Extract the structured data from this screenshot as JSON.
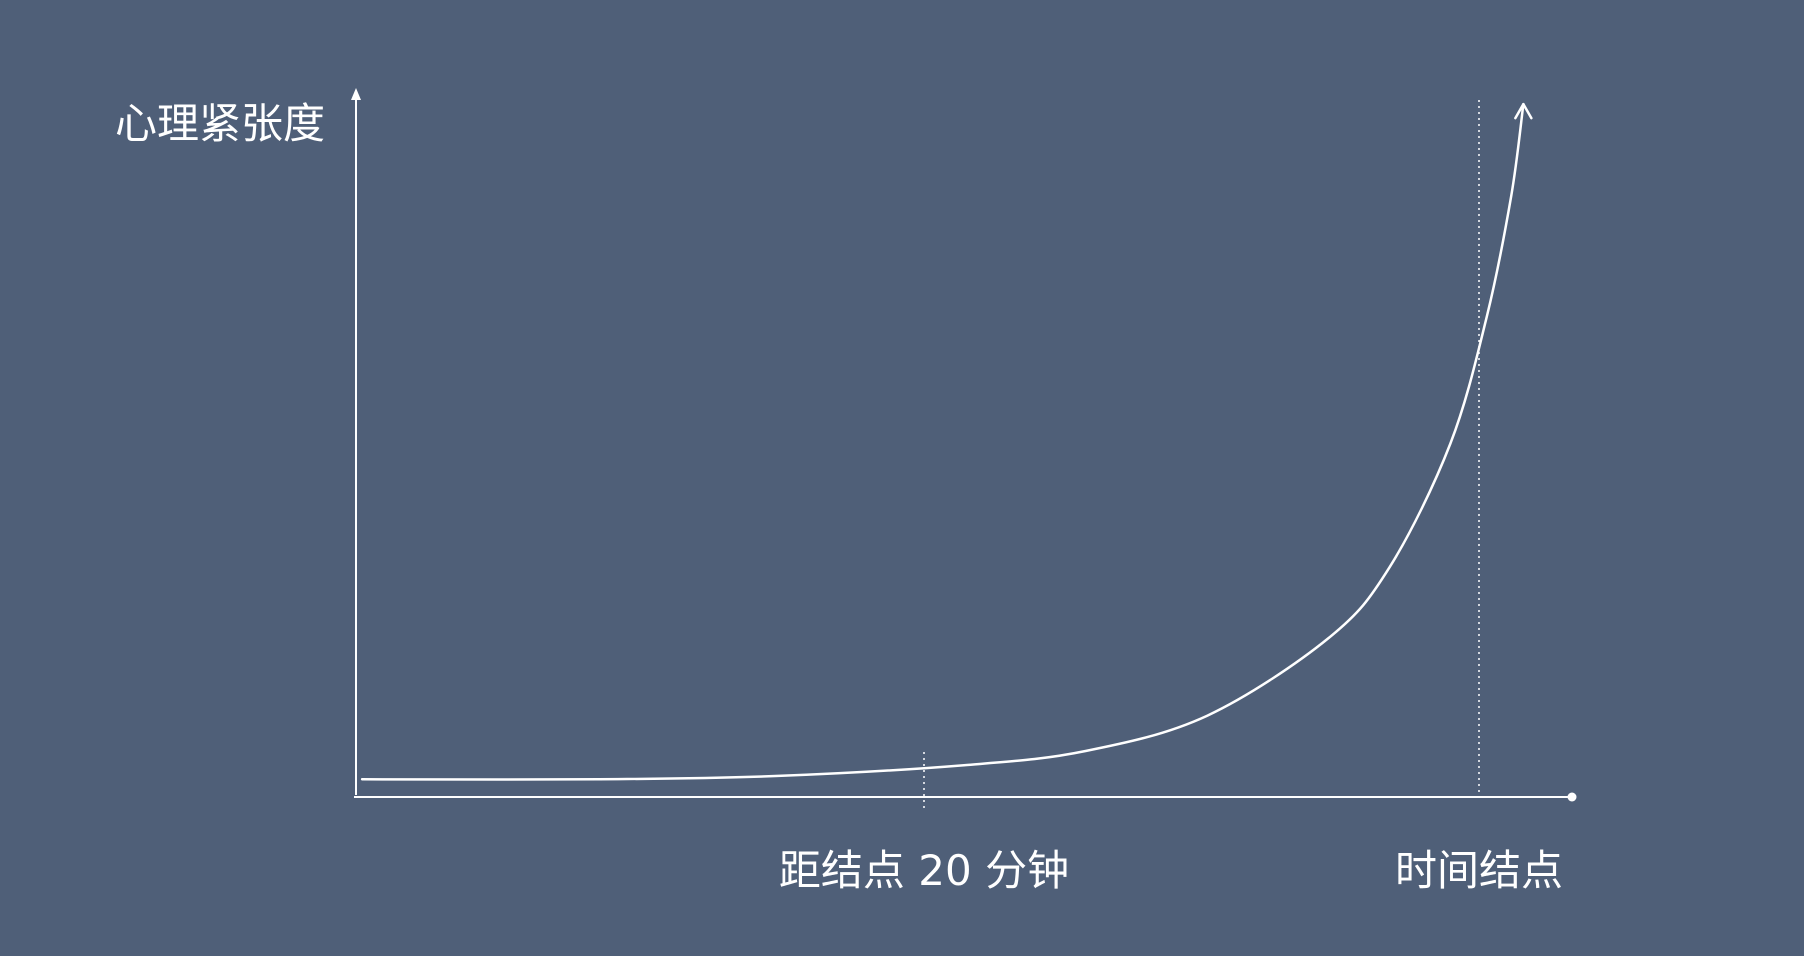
{
  "chart_data": {
    "type": "line",
    "ylabel": "心理紧张度",
    "x_markers": [
      {
        "label": "距结点 20 分钟"
      },
      {
        "label": "时间结点"
      }
    ],
    "grid": false,
    "legend": "none",
    "colors": {
      "background": "#4f5f78",
      "ink": "#ffffff"
    },
    "series": [
      {
        "shape": "exponential-rise",
        "points": [
          [
            0.005,
            0.025
          ],
          [
            0.2,
            0.025
          ],
          [
            0.35,
            0.03
          ],
          [
            0.5,
            0.045
          ],
          [
            0.6,
            0.065
          ],
          [
            0.7,
            0.115
          ],
          [
            0.8,
            0.225
          ],
          [
            0.85,
            0.325
          ],
          [
            0.9,
            0.5
          ],
          [
            0.93,
            0.68
          ],
          [
            0.95,
            0.85
          ],
          [
            0.96,
            0.98
          ]
        ]
      }
    ]
  }
}
